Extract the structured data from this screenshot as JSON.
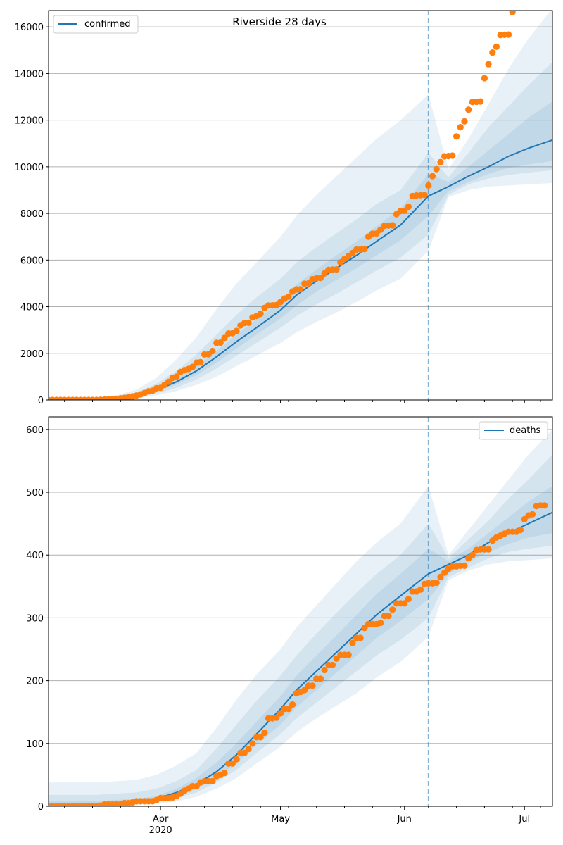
{
  "figure_title": "Riverside 28 days",
  "colors": {
    "model_line": "#1f77b4",
    "observed_points": "#ff7f0e",
    "band": "#1f77b4",
    "grid": "#b0b0b0",
    "cutoff_line": "#1f77b4"
  },
  "chart_data": [
    {
      "type": "line",
      "name": "confirmed-panel",
      "legend_entry": "confirmed",
      "legend_position": "upper-left",
      "grid": "horizontal",
      "x_axis": {
        "type": "date",
        "range": [
          "2020-03-04",
          "2020-07-08"
        ],
        "ticks": [
          "2020-04-01",
          "2020-05-01",
          "2020-06-01",
          "2020-07-01"
        ],
        "tick_labels": [
          "Apr\n2020",
          "May",
          "Jun",
          "Jul"
        ]
      },
      "ylim": [
        0,
        16700
      ],
      "yticks": [
        0,
        2000,
        4000,
        6000,
        8000,
        10000,
        12000,
        14000,
        16000
      ],
      "cutoff_date": "2020-06-07",
      "model_median": [
        [
          "2020-03-04",
          0
        ],
        [
          "2020-03-16",
          20
        ],
        [
          "2020-03-21",
          90
        ],
        [
          "2020-03-26",
          200
        ],
        [
          "2020-03-31",
          420
        ],
        [
          "2020-04-05",
          780
        ],
        [
          "2020-04-10",
          1250
        ],
        [
          "2020-04-15",
          1850
        ],
        [
          "2020-04-20",
          2500
        ],
        [
          "2020-04-25",
          3100
        ],
        [
          "2020-05-01",
          3850
        ],
        [
          "2020-05-05",
          4500
        ],
        [
          "2020-05-10",
          5100
        ],
        [
          "2020-05-15",
          5650
        ],
        [
          "2020-05-20",
          6200
        ],
        [
          "2020-05-25",
          6800
        ],
        [
          "2020-05-31",
          7500
        ],
        [
          "2020-06-07",
          8750
        ],
        [
          "2020-06-12",
          9150
        ],
        [
          "2020-06-17",
          9600
        ],
        [
          "2020-06-22",
          10000
        ],
        [
          "2020-06-27",
          10450
        ],
        [
          "2020-07-02",
          10800
        ],
        [
          "2020-07-08",
          11150
        ]
      ],
      "bands": {
        "dates": [
          "2020-03-04",
          "2020-03-16",
          "2020-03-21",
          "2020-03-26",
          "2020-03-31",
          "2020-04-05",
          "2020-04-10",
          "2020-04-15",
          "2020-04-20",
          "2020-04-25",
          "2020-05-01",
          "2020-05-05",
          "2020-05-10",
          "2020-05-15",
          "2020-05-20",
          "2020-05-25",
          "2020-05-31",
          "2020-06-07",
          "2020-06-12",
          "2020-06-17",
          "2020-06-22",
          "2020-06-27",
          "2020-07-02",
          "2020-07-08"
        ],
        "outer_lo": [
          0,
          5,
          30,
          80,
          200,
          380,
          650,
          1000,
          1450,
          1900,
          2450,
          2900,
          3350,
          3750,
          4200,
          4700,
          5200,
          6400,
          8700,
          9000,
          9150,
          9200,
          9250,
          9300
        ],
        "outer_hi": [
          0,
          60,
          200,
          450,
          950,
          1750,
          2700,
          3900,
          5000,
          5900,
          7000,
          7900,
          8800,
          9600,
          10400,
          11200,
          12000,
          13100,
          9900,
          11200,
          12700,
          14200,
          15500,
          16800
        ],
        "mid_lo": [
          0,
          10,
          45,
          120,
          280,
          520,
          880,
          1350,
          1900,
          2450,
          3100,
          3600,
          4100,
          4550,
          5050,
          5550,
          6100,
          7100,
          8800,
          9250,
          9500,
          9650,
          9750,
          9850
        ],
        "mid_hi": [
          0,
          40,
          150,
          330,
          700,
          1250,
          1950,
          2800,
          3650,
          4400,
          5200,
          5900,
          6550,
          7150,
          7750,
          8400,
          9000,
          10600,
          9550,
          10600,
          11700,
          12600,
          13500,
          14500
        ],
        "inner_lo": [
          0,
          15,
          65,
          160,
          350,
          660,
          1070,
          1600,
          2200,
          2800,
          3500,
          4050,
          4650,
          5150,
          5650,
          6200,
          6850,
          7900,
          8950,
          9350,
          9700,
          9950,
          10100,
          10250
        ],
        "inner_hi": [
          0,
          28,
          120,
          260,
          530,
          930,
          1450,
          2100,
          2800,
          3450,
          4200,
          4950,
          5600,
          6200,
          6800,
          7450,
          8200,
          9700,
          9350,
          10000,
          10700,
          11400,
          12100,
          12800
        ]
      },
      "observed": {
        "start_date": "2020-03-04",
        "values": [
          0,
          0,
          0,
          0,
          0,
          0,
          0,
          0,
          0,
          0,
          0,
          0,
          0,
          10,
          20,
          30,
          40,
          50,
          70,
          90,
          120,
          150,
          190,
          240,
          300,
          370,
          400,
          500,
          520,
          650,
          780,
          950,
          1000,
          1200,
          1280,
          1330,
          1420,
          1600,
          1620,
          1950,
          1960,
          2100,
          2450,
          2460,
          2660,
          2850,
          2860,
          2960,
          3200,
          3300,
          3310,
          3540,
          3600,
          3700,
          3950,
          4050,
          4060,
          4070,
          4200,
          4350,
          4430,
          4650,
          4740,
          4750,
          4990,
          5000,
          5180,
          5220,
          5230,
          5430,
          5580,
          5590,
          5600,
          5900,
          6050,
          6170,
          6300,
          6450,
          6460,
          6470,
          7000,
          7130,
          7140,
          7300,
          7470,
          7480,
          7490,
          7970,
          8100,
          8110,
          8290,
          8750,
          8770,
          8780,
          8790,
          9200,
          9600,
          9900,
          10200,
          10450,
          10460,
          10480,
          11300,
          11700,
          11950,
          12450,
          12780,
          12790,
          12800,
          13800,
          14400,
          14900,
          15150,
          15650,
          15660,
          15670,
          16630
        ]
      }
    },
    {
      "type": "line",
      "name": "deaths-panel",
      "legend_entry": "deaths",
      "legend_position": "upper-right",
      "grid": "horizontal",
      "x_axis": {
        "type": "date",
        "range": [
          "2020-03-04",
          "2020-07-08"
        ],
        "ticks": [
          "2020-04-01",
          "2020-05-01",
          "2020-06-01",
          "2020-07-01"
        ],
        "tick_labels": [
          "Apr\n2020",
          "May",
          "Jun",
          "Jul"
        ]
      },
      "ylim": [
        0,
        620
      ],
      "yticks": [
        0,
        100,
        200,
        300,
        400,
        500,
        600
      ],
      "cutoff_date": "2020-06-07",
      "model_median": [
        [
          "2020-03-04",
          0
        ],
        [
          "2020-03-16",
          2
        ],
        [
          "2020-03-26",
          8
        ],
        [
          "2020-03-31",
          12
        ],
        [
          "2020-04-05",
          22
        ],
        [
          "2020-04-10",
          35
        ],
        [
          "2020-04-15",
          55
        ],
        [
          "2020-04-20",
          82
        ],
        [
          "2020-04-25",
          115
        ],
        [
          "2020-05-01",
          155
        ],
        [
          "2020-05-05",
          185
        ],
        [
          "2020-05-10",
          215
        ],
        [
          "2020-05-15",
          245
        ],
        [
          "2020-05-20",
          275
        ],
        [
          "2020-05-25",
          305
        ],
        [
          "2020-05-31",
          335
        ],
        [
          "2020-06-07",
          370
        ],
        [
          "2020-06-12",
          385
        ],
        [
          "2020-06-17",
          400
        ],
        [
          "2020-06-22",
          420
        ],
        [
          "2020-06-27",
          435
        ],
        [
          "2020-07-02",
          450
        ],
        [
          "2020-07-08",
          468
        ]
      ],
      "bands": {
        "dates": [
          "2020-03-04",
          "2020-03-16",
          "2020-03-26",
          "2020-03-31",
          "2020-04-05",
          "2020-04-10",
          "2020-04-15",
          "2020-04-20",
          "2020-04-25",
          "2020-05-01",
          "2020-05-05",
          "2020-05-10",
          "2020-05-15",
          "2020-05-20",
          "2020-05-25",
          "2020-05-31",
          "2020-06-07",
          "2020-06-12",
          "2020-06-17",
          "2020-06-22",
          "2020-06-27",
          "2020-07-02",
          "2020-07-08"
        ],
        "outer_lo": [
          0,
          0,
          2,
          4,
          8,
          15,
          28,
          45,
          68,
          95,
          118,
          140,
          160,
          180,
          205,
          230,
          270,
          360,
          375,
          385,
          390,
          392,
          395
        ],
        "outer_hi": [
          38,
          38,
          42,
          50,
          65,
          85,
          125,
          170,
          210,
          250,
          285,
          320,
          355,
          390,
          420,
          450,
          510,
          400,
          440,
          480,
          520,
          560,
          600
        ],
        "mid_lo": [
          0,
          0,
          4,
          7,
          13,
          22,
          38,
          58,
          85,
          115,
          140,
          165,
          190,
          215,
          240,
          265,
          300,
          365,
          380,
          395,
          405,
          410,
          415
        ],
        "mid_hi": [
          18,
          18,
          22,
          28,
          40,
          58,
          92,
          130,
          168,
          208,
          240,
          275,
          308,
          340,
          370,
          400,
          450,
          395,
          425,
          455,
          490,
          520,
          560
        ],
        "inner_lo": [
          0,
          1,
          6,
          9,
          17,
          28,
          45,
          68,
          98,
          130,
          158,
          185,
          213,
          240,
          268,
          295,
          330,
          370,
          388,
          405,
          418,
          428,
          435
        ],
        "inner_hi": [
          8,
          8,
          12,
          16,
          28,
          45,
          70,
          100,
          135,
          175,
          208,
          240,
          272,
          305,
          338,
          370,
          410,
          390,
          410,
          435,
          460,
          485,
          510
        ]
      },
      "observed": {
        "start_date": "2020-03-04",
        "values": [
          0,
          0,
          0,
          0,
          0,
          0,
          0,
          0,
          0,
          0,
          0,
          0,
          0,
          1,
          3,
          3,
          3,
          3,
          3,
          5,
          5,
          6,
          8,
          8,
          8,
          8,
          8,
          10,
          13,
          13,
          13,
          14,
          16,
          20,
          25,
          28,
          32,
          32,
          38,
          40,
          40,
          40,
          48,
          50,
          53,
          68,
          68,
          75,
          85,
          85,
          91,
          100,
          110,
          110,
          117,
          140,
          140,
          141,
          148,
          155,
          155,
          162,
          180,
          182,
          185,
          192,
          192,
          203,
          203,
          217,
          225,
          225,
          235,
          241,
          241,
          241,
          260,
          268,
          268,
          284,
          290,
          290,
          290,
          292,
          303,
          303,
          313,
          323,
          323,
          323,
          330,
          342,
          342,
          345,
          354,
          355,
          355,
          356,
          365,
          372,
          378,
          382,
          382,
          383,
          383,
          395,
          400,
          408,
          409,
          409,
          409,
          423,
          428,
          431,
          434,
          437,
          437,
          437,
          440,
          457,
          463,
          465,
          478,
          479,
          479
        ]
      }
    }
  ]
}
